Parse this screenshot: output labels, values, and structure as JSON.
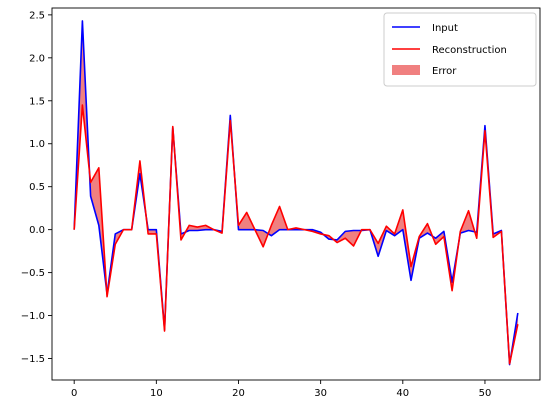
{
  "chart_data": {
    "type": "line",
    "title": "",
    "xlabel": "",
    "ylabel": "",
    "xlim": [
      -2.7,
      56.7
    ],
    "ylim": [
      -1.75,
      2.58
    ],
    "xticks": [
      0,
      10,
      20,
      30,
      40,
      50
    ],
    "xtick_labels": [
      "0",
      "10",
      "20",
      "30",
      "40",
      "50"
    ],
    "yticks": [
      -1.5,
      -1.0,
      -0.5,
      0.0,
      0.5,
      1.0,
      1.5,
      2.0,
      2.5
    ],
    "ytick_labels": [
      "−1.5",
      "−1.0",
      "−0.5",
      "0.0",
      "0.5",
      "1.0",
      "1.5",
      "2.0",
      "2.5"
    ],
    "grid": false,
    "legend_position": "top-right",
    "x": [
      0,
      1,
      2,
      3,
      4,
      5,
      6,
      7,
      8,
      9,
      10,
      11,
      12,
      13,
      14,
      15,
      16,
      17,
      18,
      19,
      20,
      21,
      22,
      23,
      24,
      25,
      26,
      27,
      28,
      29,
      30,
      31,
      32,
      33,
      34,
      35,
      36,
      37,
      38,
      39,
      40,
      41,
      42,
      43,
      44,
      45,
      46,
      47,
      48,
      49,
      50,
      51,
      52,
      53,
      54
    ],
    "series": [
      {
        "name": "Input",
        "color": "#0000ff",
        "values": [
          0.0,
          2.43,
          0.39,
          0.05,
          -0.75,
          -0.05,
          0.0,
          0.0,
          0.65,
          0.0,
          0.0,
          -1.16,
          1.19,
          -0.05,
          -0.01,
          -0.01,
          0.0,
          0.0,
          -0.02,
          1.33,
          0.0,
          0.0,
          0.0,
          -0.01,
          -0.07,
          0.0,
          0.0,
          0.0,
          0.0,
          0.0,
          -0.03,
          -0.11,
          -0.12,
          -0.02,
          -0.01,
          -0.01,
          0.0,
          -0.31,
          -0.01,
          -0.07,
          0.0,
          -0.59,
          -0.1,
          -0.04,
          -0.1,
          -0.02,
          -0.61,
          -0.04,
          -0.01,
          -0.03,
          1.21,
          -0.05,
          -0.01,
          -1.57,
          -0.97
        ]
      },
      {
        "name": "Reconstruction",
        "color": "#ff0000",
        "values": [
          0.0,
          1.45,
          0.55,
          0.72,
          -0.78,
          -0.17,
          0.0,
          0.0,
          0.8,
          -0.05,
          -0.05,
          -1.18,
          1.2,
          -0.12,
          0.05,
          0.03,
          0.05,
          0.0,
          -0.04,
          1.27,
          0.05,
          0.2,
          0.0,
          -0.2,
          0.05,
          0.27,
          0.0,
          0.02,
          0.0,
          -0.02,
          -0.05,
          -0.07,
          -0.15,
          -0.1,
          -0.19,
          0.0,
          0.0,
          -0.16,
          0.04,
          -0.05,
          0.23,
          -0.43,
          -0.08,
          0.07,
          -0.17,
          -0.08,
          -0.71,
          -0.02,
          0.22,
          -0.1,
          1.15,
          -0.09,
          -0.02,
          -1.56,
          -1.1
        ]
      }
    ],
    "fill_between": {
      "name": "Error",
      "color": "#f08080",
      "between": [
        "Input",
        "Reconstruction"
      ]
    }
  },
  "legend": {
    "items": [
      {
        "label": "Input",
        "kind": "line",
        "color": "#0000ff"
      },
      {
        "label": "Reconstruction",
        "kind": "line",
        "color": "#ff0000"
      },
      {
        "label": "Error",
        "kind": "patch",
        "color": "#f08080"
      }
    ]
  }
}
